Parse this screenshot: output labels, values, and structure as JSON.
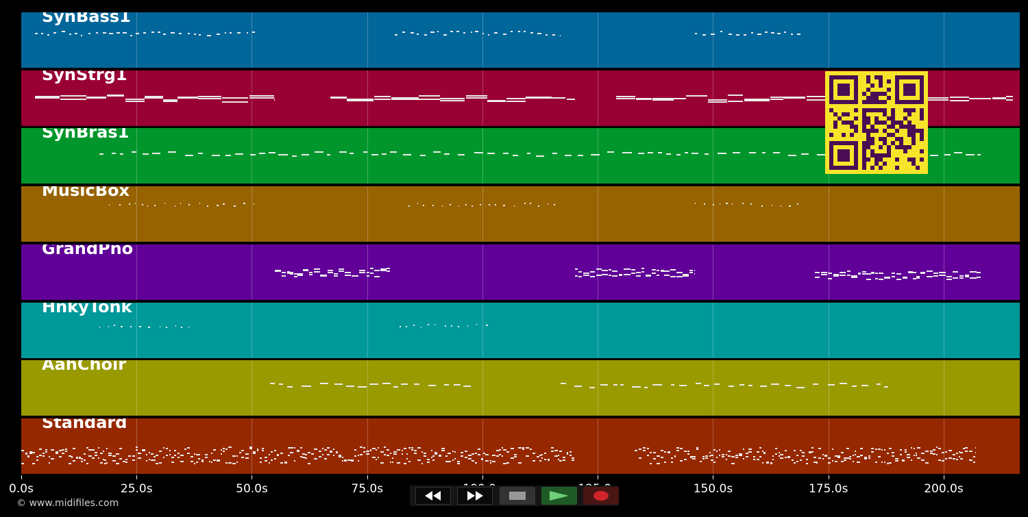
{
  "timeline": {
    "max_seconds": 216.5,
    "tick_labels": [
      "0.0s",
      "25.0s",
      "50.0s",
      "75.0s",
      "100.0s",
      "125.0s",
      "150.0s",
      "175.0s",
      "200.0s"
    ],
    "tick_values": [
      0,
      25,
      50,
      75,
      100,
      125,
      150,
      175,
      200
    ]
  },
  "tracks": [
    {
      "name": "SynBass1",
      "color": "#01669a"
    },
    {
      "name": "SynStrg1",
      "color": "#990033"
    },
    {
      "name": "SynBras1",
      "color": "#00962c"
    },
    {
      "name": "MusicBox",
      "color": "#966300"
    },
    {
      "name": "GrandPno",
      "color": "#600098"
    },
    {
      "name": "HnkyTonk",
      "color": "#009999"
    },
    {
      "name": "AahChoir",
      "color": "#999900"
    },
    {
      "name": "Standard",
      "color": "#962800"
    }
  ],
  "note_segments": [
    {
      "track": 0,
      "start": 3,
      "end": 52,
      "pitch": 0.37,
      "style": "sparse"
    },
    {
      "track": 0,
      "start": 81,
      "end": 117,
      "pitch": 0.37,
      "style": "sparse"
    },
    {
      "track": 0,
      "start": 146,
      "end": 169,
      "pitch": 0.37,
      "style": "sparse"
    },
    {
      "track": 1,
      "start": 3,
      "end": 55,
      "pitch": 0.5,
      "style": "long"
    },
    {
      "track": 1,
      "start": 67,
      "end": 120,
      "pitch": 0.5,
      "style": "long"
    },
    {
      "track": 1,
      "start": 129,
      "end": 215,
      "pitch": 0.5,
      "style": "long"
    },
    {
      "track": 2,
      "start": 17,
      "end": 208,
      "pitch": 0.45,
      "style": "medium"
    },
    {
      "track": 3,
      "start": 19,
      "end": 52,
      "pitch": 0.32,
      "style": "dots"
    },
    {
      "track": 3,
      "start": 84,
      "end": 117,
      "pitch": 0.32,
      "style": "dots"
    },
    {
      "track": 3,
      "start": 146,
      "end": 169,
      "pitch": 0.32,
      "style": "dots"
    },
    {
      "track": 4,
      "start": 55,
      "end": 80,
      "pitch": 0.5,
      "style": "dense"
    },
    {
      "track": 4,
      "start": 120,
      "end": 146,
      "pitch": 0.5,
      "style": "dense"
    },
    {
      "track": 4,
      "start": 172,
      "end": 208,
      "pitch": 0.55,
      "style": "dense"
    },
    {
      "track": 5,
      "start": 17,
      "end": 37,
      "pitch": 0.42,
      "style": "dots"
    },
    {
      "track": 5,
      "start": 82,
      "end": 102,
      "pitch": 0.42,
      "style": "dots"
    },
    {
      "track": 6,
      "start": 54,
      "end": 98,
      "pitch": 0.44,
      "style": "medium"
    },
    {
      "track": 6,
      "start": 117,
      "end": 188,
      "pitch": 0.44,
      "style": "medium"
    },
    {
      "track": 7,
      "start": 0,
      "end": 120,
      "pitch": 0.66,
      "style": "drum"
    },
    {
      "track": 7,
      "start": 133,
      "end": 207,
      "pitch": 0.66,
      "style": "drum"
    }
  ],
  "transport": {
    "buttons": [
      {
        "name": "rewind",
        "icon": "rewind-icon"
      },
      {
        "name": "fast-forward",
        "icon": "fast-forward-icon"
      },
      {
        "name": "stop",
        "icon": "stop-icon"
      },
      {
        "name": "play",
        "icon": "play-icon"
      },
      {
        "name": "record",
        "icon": "record-icon"
      }
    ]
  },
  "footer": {
    "copyright": "© www.midifiles.com"
  },
  "qr_code": {
    "icon": "qr-code-icon"
  }
}
